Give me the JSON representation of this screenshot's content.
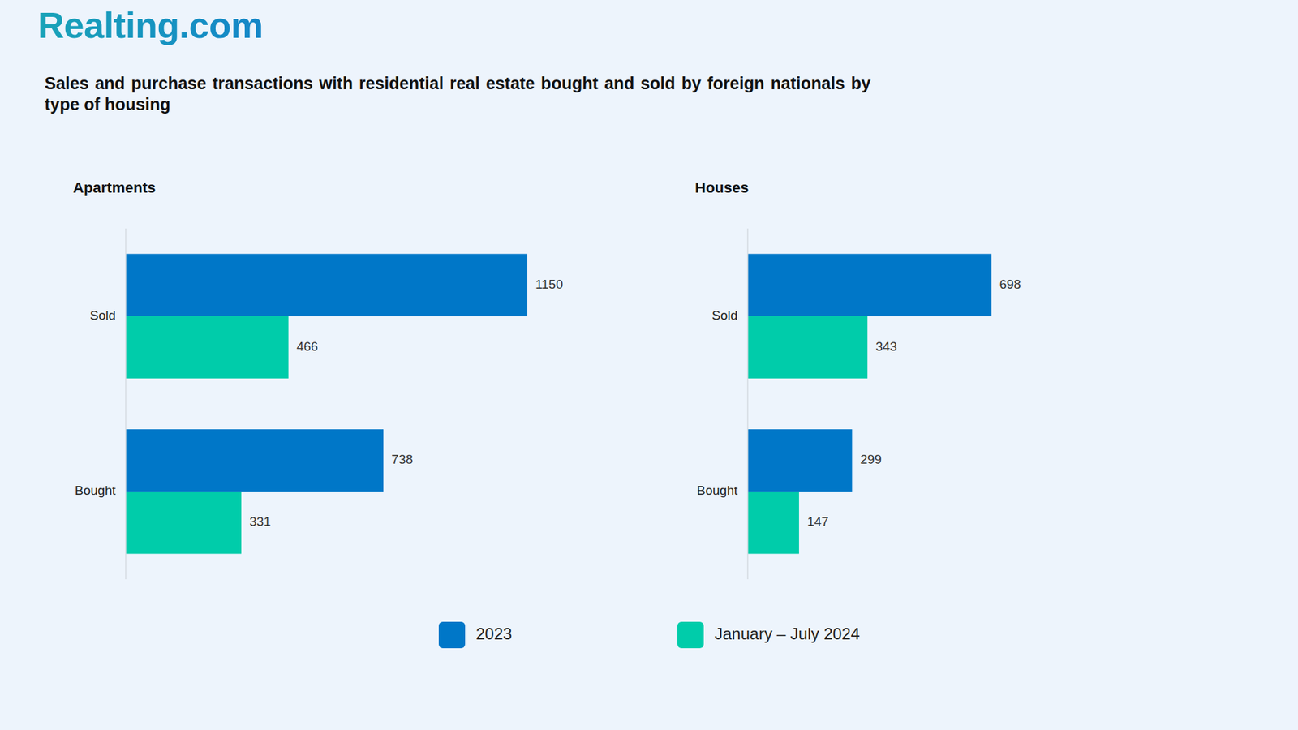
{
  "header": {
    "logo": "Realting.com",
    "title": "Sales and purchase transactions with residential real estate bought and sold by foreign nationals by type of housing"
  },
  "chart_data": [
    {
      "type": "bar",
      "title": "Apartments",
      "orientation": "horizontal",
      "categories": [
        "Sold",
        "Bought"
      ],
      "series": [
        {
          "name": "2023",
          "color": "#0077c8",
          "values": [
            1150,
            738
          ]
        },
        {
          "name": "January – July 2024",
          "color": "#00ccaa",
          "values": [
            466,
            331
          ]
        }
      ],
      "xlim": [
        0,
        1400
      ],
      "data_labels": true,
      "tick_labels": "y",
      "grid": false,
      "legend": "bottom"
    },
    {
      "type": "bar",
      "title": "Houses",
      "orientation": "horizontal",
      "categories": [
        "Sold",
        "Bought"
      ],
      "series": [
        {
          "name": "2023",
          "color": "#0077c8",
          "values": [
            698,
            299
          ]
        },
        {
          "name": "January – July 2024",
          "color": "#00ccaa",
          "values": [
            343,
            147
          ]
        }
      ],
      "xlim": [
        0,
        1400
      ],
      "data_labels": true,
      "tick_labels": "y",
      "grid": false,
      "legend": "bottom"
    }
  ]
}
